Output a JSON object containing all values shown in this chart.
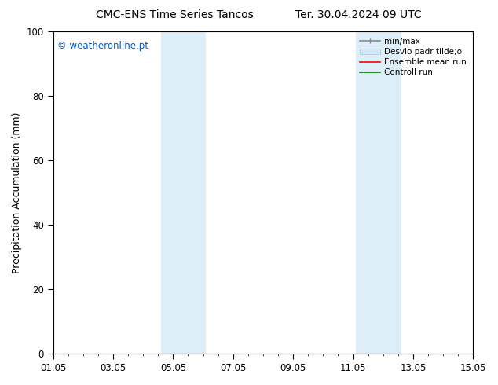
{
  "title_left": "CMC-ENS Time Series Tancos",
  "title_right": "Ter. 30.04.2024 09 UTC",
  "ylabel": "Precipitation Accumulation (mm)",
  "ylim": [
    0,
    100
  ],
  "yticks": [
    0,
    20,
    40,
    60,
    80,
    100
  ],
  "xlim": [
    0,
    14
  ],
  "xtick_labels": [
    "01.05",
    "03.05",
    "05.05",
    "07.05",
    "09.05",
    "11.05",
    "13.05",
    "15.05"
  ],
  "xtick_positions": [
    0,
    2,
    4,
    6,
    8,
    10,
    12,
    14
  ],
  "shade_bands": [
    {
      "xstart": 3.6,
      "xend": 5.1,
      "color": "#ddeef8"
    },
    {
      "xstart": 10.1,
      "xend": 11.6,
      "color": "#ddeef8"
    }
  ],
  "watermark_text": "© weatheronline.pt",
  "watermark_color": "#0055cc",
  "legend_labels": [
    "min/max",
    "Desvio padr tilde;o",
    "Ensemble mean run",
    "Controll run"
  ],
  "legend_colors": [
    "#aaaaaa",
    "#d0e8f8",
    "red",
    "green"
  ],
  "background_color": "#ffffff",
  "title_fontsize": 10,
  "axis_label_fontsize": 9,
  "tick_fontsize": 8.5
}
